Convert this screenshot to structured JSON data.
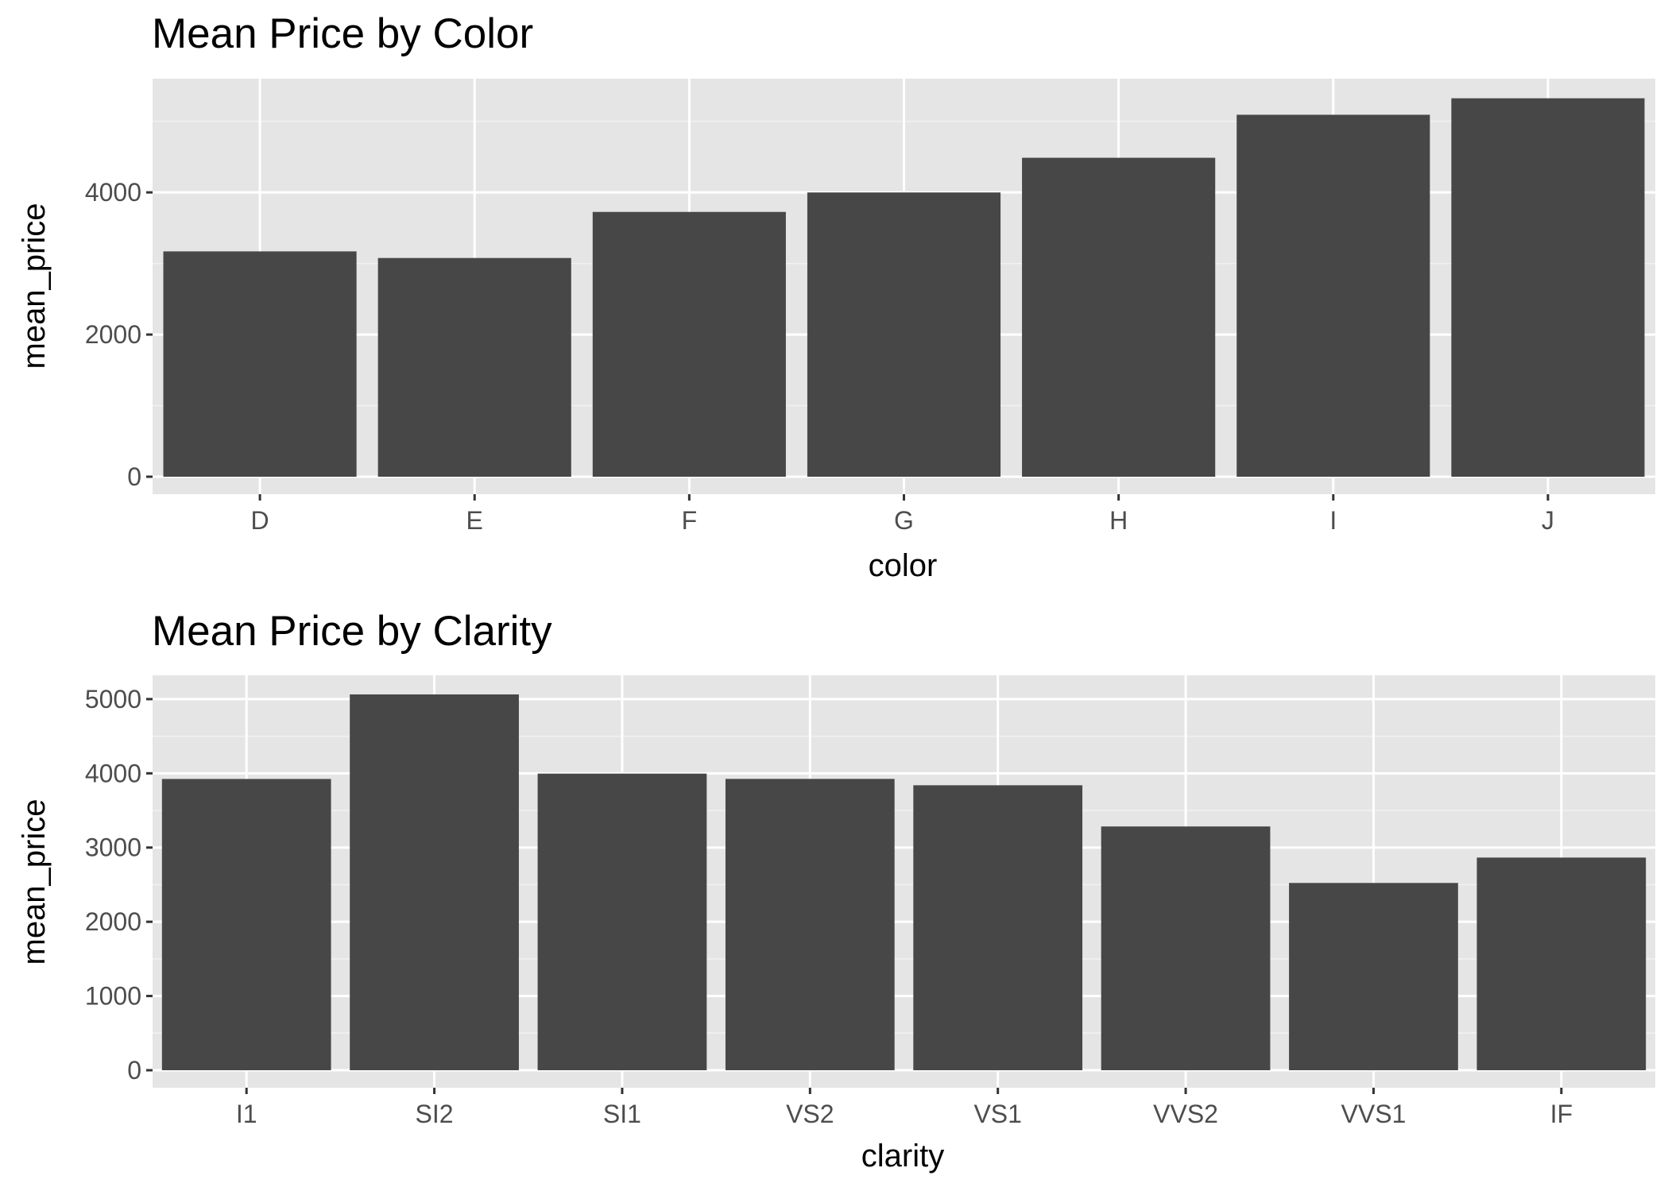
{
  "colors": {
    "panel_background": "#e5e5e5",
    "grid_major": "#ffffff",
    "grid_minor": "#f2f2f2",
    "bar_fill": "#474747",
    "tick_label": "#4d4d4d",
    "tick_mark": "#333333",
    "title_text": "#000000"
  },
  "chart_data": [
    {
      "type": "bar",
      "title": "Mean Price by Color",
      "xlabel": "color",
      "ylabel": "mean_price",
      "categories": [
        "D",
        "E",
        "F",
        "G",
        "H",
        "I",
        "J"
      ],
      "values": [
        3170,
        3077,
        3725,
        3999,
        4487,
        5092,
        5324
      ],
      "ylim": [
        0,
        5600
      ],
      "yticks": [
        0,
        2000,
        4000
      ],
      "ytick_labels": [
        "0",
        "2000",
        "4000"
      ],
      "grid": true,
      "legend": "none"
    },
    {
      "type": "bar",
      "title": "Mean Price by Clarity",
      "xlabel": "clarity",
      "ylabel": "mean_price",
      "categories": [
        "I1",
        "SI2",
        "SI1",
        "VS2",
        "VS1",
        "VVS2",
        "VVS1",
        "IF"
      ],
      "values": [
        3924,
        5063,
        3996,
        3925,
        3839,
        3284,
        2523,
        2865
      ],
      "ylim": [
        0,
        5320
      ],
      "yticks": [
        0,
        1000,
        2000,
        3000,
        4000,
        5000
      ],
      "ytick_labels": [
        "0",
        "1000",
        "2000",
        "3000",
        "4000",
        "5000"
      ],
      "grid": true,
      "legend": "none"
    }
  ]
}
